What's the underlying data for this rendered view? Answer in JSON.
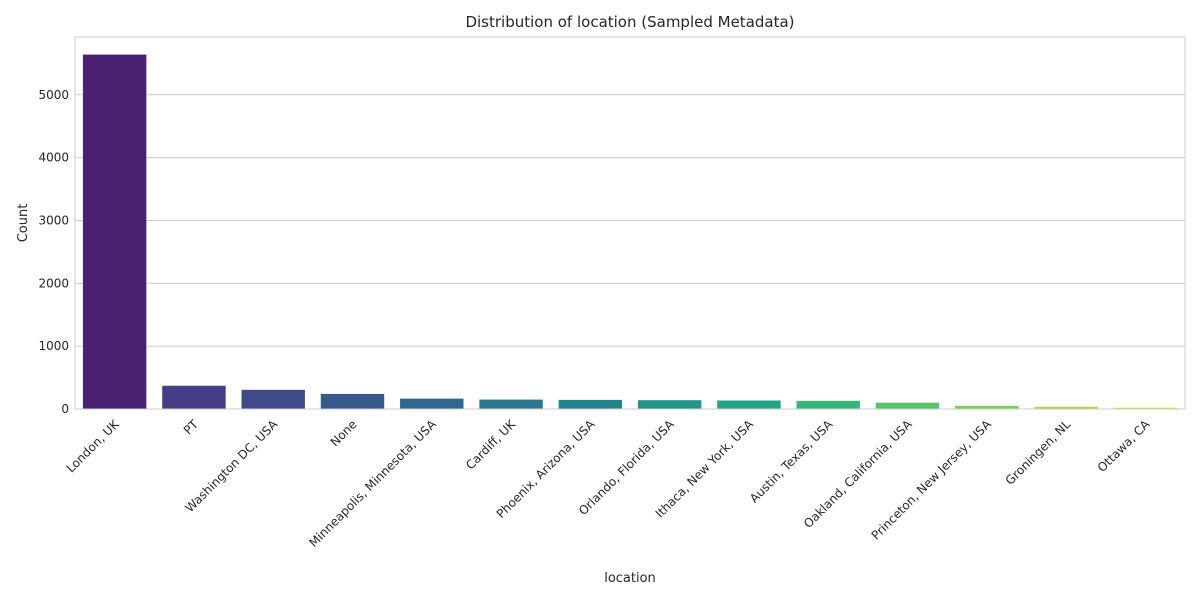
{
  "chart_data": {
    "type": "bar",
    "title": "Distribution of location (Sampled Metadata)",
    "xlabel": "location",
    "ylabel": "Count",
    "categories": [
      "London, UK",
      "PT",
      "Washington DC, USA",
      "None",
      "Minneapolis, Minnesota, USA",
      "Cardiff, UK",
      "Phoenix, Arizona, USA",
      "Orlando, Florida, USA",
      "Ithaca, New York, USA",
      "Austin, Texas, USA",
      "Oakland, California, USA",
      "Princeton, New Jersey, USA",
      "Groningen, NL",
      "Ottawa, CA"
    ],
    "values": [
      5640,
      370,
      305,
      240,
      165,
      150,
      145,
      140,
      135,
      130,
      100,
      50,
      35,
      20
    ],
    "colors": [
      "#482173",
      "#433e85",
      "#3e4a89",
      "#38598c",
      "#31668e",
      "#2a788e",
      "#25838e",
      "#1f958b",
      "#20a386",
      "#35b779",
      "#54c568",
      "#7ad151",
      "#a8db34",
      "#d0e11c"
    ],
    "yticks": [
      0,
      1000,
      2000,
      3000,
      4000,
      5000
    ],
    "ylim": [
      0,
      5920
    ],
    "grid": "horizontal",
    "style": "whitegrid"
  }
}
